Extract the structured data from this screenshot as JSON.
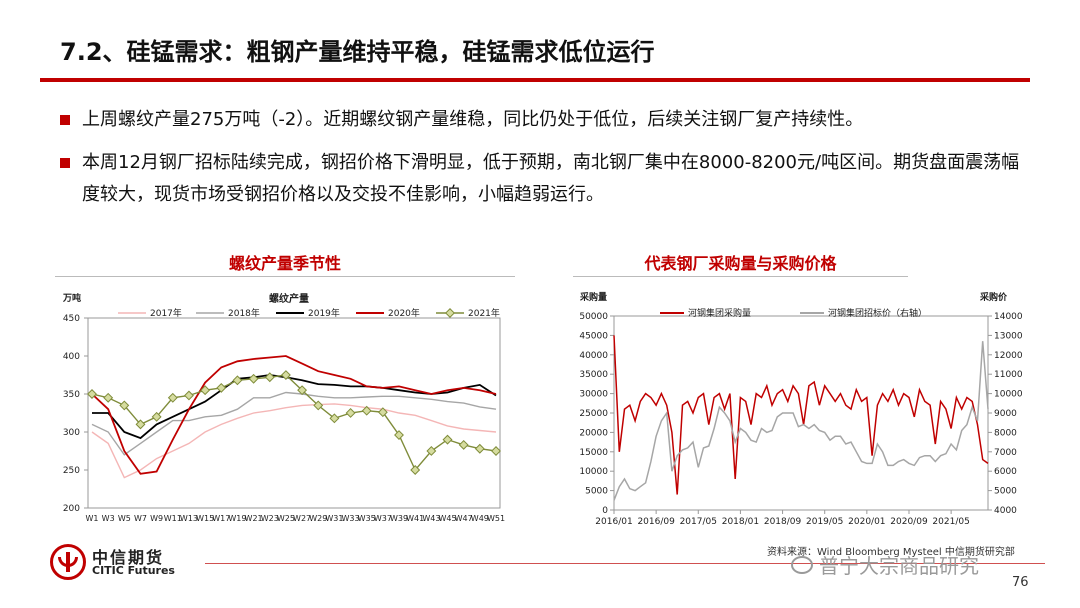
{
  "slide": {
    "title": "7.2、硅锰需求：粗钢产量维持平稳，硅锰需求低位运行",
    "bullets": [
      "上周螺纹产量275万吨（-2）。近期螺纹钢产量维稳，同比仍处于低位，后续关注钢厂复产持续性。",
      "本周12月钢厂招标陆续完成，钢招价格下滑明显，低于预期，南北钢厂集中在8000-8200元/吨区间。期货盘面震荡幅度较大，现货市场受钢招价格以及交投不佳影响，小幅趋弱运行。"
    ],
    "left_chart_header": "螺纹产量季节性",
    "right_chart_header": "代表钢厂采购量与采购价格",
    "page_number": "76",
    "source_text": "资料来源：Wind Bloomberg Mysteel 中信期货研究部",
    "watermark": "普宁大宗商品研究",
    "logo": {
      "cn": "中信期货",
      "en": "CITIC Futures"
    }
  },
  "chart_data": [
    {
      "type": "line",
      "title": "螺纹产量",
      "ylabel": "万吨",
      "ylim": [
        200,
        450
      ],
      "yticks": [
        200,
        250,
        300,
        350,
        400,
        450
      ],
      "grid": false,
      "legend": "top",
      "categories": [
        "W1",
        "W3",
        "W5",
        "W7",
        "W9",
        "W11",
        "W13",
        "W15",
        "W17",
        "W19",
        "W21",
        "W23",
        "W25",
        "W27",
        "W29",
        "W31",
        "W33",
        "W35",
        "W37",
        "W39",
        "W41",
        "W43",
        "W45",
        "W47",
        "W49",
        "W51"
      ],
      "series": [
        {
          "name": "2017年",
          "color": "#f4b6b6",
          "values": [
            300,
            285,
            240,
            250,
            265,
            275,
            285,
            300,
            310,
            318,
            325,
            328,
            332,
            335,
            336,
            337,
            335,
            332,
            330,
            325,
            322,
            315,
            308,
            304,
            302,
            300
          ]
        },
        {
          "name": "2018年",
          "color": "#a6a6a6",
          "values": [
            310,
            300,
            270,
            285,
            300,
            315,
            315,
            320,
            322,
            330,
            345,
            345,
            352,
            350,
            347,
            345,
            345,
            346,
            347,
            347,
            345,
            343,
            340,
            338,
            333,
            330
          ]
        },
        {
          "name": "2019年",
          "color": "#000000",
          "values": [
            325,
            325,
            300,
            292,
            310,
            320,
            330,
            340,
            355,
            370,
            372,
            375,
            372,
            368,
            363,
            362,
            360,
            360,
            358,
            355,
            352,
            350,
            352,
            358,
            362,
            348
          ]
        },
        {
          "name": "2020年",
          "color": "#c00000",
          "values": [
            350,
            330,
            275,
            245,
            248,
            290,
            330,
            365,
            385,
            393,
            396,
            398,
            400,
            390,
            380,
            375,
            370,
            360,
            358,
            360,
            355,
            350,
            355,
            358,
            355,
            350
          ]
        },
        {
          "name": "2021年",
          "color": "#7f8c3a",
          "values": [
            350,
            345,
            335,
            310,
            320,
            345,
            348,
            355,
            358,
            368,
            370,
            372,
            375,
            355,
            335,
            318,
            325,
            328,
            326,
            296,
            250,
            275,
            290,
            283,
            278,
            275
          ]
        }
      ]
    },
    {
      "type": "line",
      "ylabel": "采购量",
      "y2label": "采购价",
      "ylim": [
        0,
        50000
      ],
      "y2lim": [
        4000,
        14000
      ],
      "yticks": [
        0,
        5000,
        10000,
        15000,
        20000,
        25000,
        30000,
        35000,
        40000,
        45000,
        50000
      ],
      "y2ticks": [
        4000,
        5000,
        6000,
        7000,
        8000,
        9000,
        10000,
        11000,
        12000,
        13000,
        14000
      ],
      "grid": false,
      "legend": "top",
      "x_labels": [
        "2016/01",
        "2016/09",
        "2017/05",
        "2018/01",
        "2018/09",
        "2019/05",
        "2020/01",
        "2020/09",
        "2021/05"
      ],
      "x_start": "2016/01",
      "x_end": "2021/12",
      "series": [
        {
          "name": "河钢集团采购量",
          "color": "#c00000",
          "axis": "left",
          "x": [
            "2016/01",
            "2016/02",
            "2016/03",
            "2016/04",
            "2016/05",
            "2016/06",
            "2016/07",
            "2016/08",
            "2016/09",
            "2016/10",
            "2016/11",
            "2016/12",
            "2017/01",
            "2017/02",
            "2017/03",
            "2017/04",
            "2017/05",
            "2017/06",
            "2017/07",
            "2017/08",
            "2017/09",
            "2017/10",
            "2017/11",
            "2017/12",
            "2018/01",
            "2018/02",
            "2018/03",
            "2018/04",
            "2018/05",
            "2018/06",
            "2018/07",
            "2018/08",
            "2018/09",
            "2018/10",
            "2018/11",
            "2018/12",
            "2019/01",
            "2019/02",
            "2019/03",
            "2019/04",
            "2019/05",
            "2019/06",
            "2019/07",
            "2019/08",
            "2019/09",
            "2019/10",
            "2019/11",
            "2019/12",
            "2020/01",
            "2020/02",
            "2020/03",
            "2020/04",
            "2020/05",
            "2020/06",
            "2020/07",
            "2020/08",
            "2020/09",
            "2020/10",
            "2020/11",
            "2020/12",
            "2021/01",
            "2021/02",
            "2021/03",
            "2021/04",
            "2021/05",
            "2021/06",
            "2021/07",
            "2021/08",
            "2021/09",
            "2021/10",
            "2021/11",
            "2021/12"
          ],
          "values": [
            45000,
            15000,
            26000,
            27000,
            23000,
            28000,
            30000,
            29000,
            27000,
            30000,
            27000,
            20000,
            4000,
            27000,
            28000,
            25000,
            29000,
            30000,
            22000,
            29000,
            30000,
            26000,
            30000,
            8000,
            29000,
            28000,
            22000,
            30000,
            29000,
            32000,
            27000,
            30000,
            31000,
            28000,
            32000,
            30000,
            22000,
            32000,
            33000,
            27000,
            32000,
            30000,
            28000,
            30000,
            27000,
            26000,
            31000,
            28000,
            29000,
            14000,
            27000,
            30000,
            28000,
            31000,
            27000,
            30000,
            29000,
            24000,
            31000,
            28000,
            27000,
            17000,
            28000,
            26000,
            21000,
            29000,
            26000,
            29000,
            28000,
            22000,
            13000,
            12000
          ]
        },
        {
          "name": "河钢集团招标价（右轴）",
          "color": "#a6a6a6",
          "axis": "right",
          "x": [
            "2016/01",
            "2016/02",
            "2016/03",
            "2016/04",
            "2016/05",
            "2016/06",
            "2016/07",
            "2016/08",
            "2016/09",
            "2016/10",
            "2016/11",
            "2016/12",
            "2017/01",
            "2017/02",
            "2017/03",
            "2017/04",
            "2017/05",
            "2017/06",
            "2017/07",
            "2017/08",
            "2017/09",
            "2017/10",
            "2017/11",
            "2017/12",
            "2018/01",
            "2018/02",
            "2018/03",
            "2018/04",
            "2018/05",
            "2018/06",
            "2018/07",
            "2018/08",
            "2018/09",
            "2018/10",
            "2018/11",
            "2018/12",
            "2019/01",
            "2019/02",
            "2019/03",
            "2019/04",
            "2019/05",
            "2019/06",
            "2019/07",
            "2019/08",
            "2019/09",
            "2019/10",
            "2019/11",
            "2019/12",
            "2020/01",
            "2020/02",
            "2020/03",
            "2020/04",
            "2020/05",
            "2020/06",
            "2020/07",
            "2020/08",
            "2020/09",
            "2020/10",
            "2020/11",
            "2020/12",
            "2021/01",
            "2021/02",
            "2021/03",
            "2021/04",
            "2021/05",
            "2021/06",
            "2021/07",
            "2021/08",
            "2021/09",
            "2021/10",
            "2021/11",
            "2021/12"
          ],
          "values": [
            4500,
            5200,
            5600,
            5100,
            5000,
            5200,
            5400,
            6500,
            7800,
            8600,
            9000,
            6000,
            6800,
            7100,
            7200,
            7500,
            6200,
            7200,
            7300,
            8200,
            9300,
            9000,
            8600,
            7500,
            8200,
            8000,
            7600,
            7500,
            8200,
            8000,
            8100,
            8800,
            9000,
            9000,
            9000,
            8300,
            8400,
            8200,
            8400,
            8100,
            8000,
            7600,
            7800,
            7800,
            7400,
            7500,
            7000,
            6500,
            6400,
            6400,
            7400,
            7000,
            6300,
            6300,
            6500,
            6600,
            6400,
            6300,
            6700,
            6800,
            6800,
            6500,
            6800,
            6900,
            7400,
            7100,
            8100,
            8400,
            9300,
            8600,
            12700,
            9200
          ]
        }
      ]
    }
  ]
}
